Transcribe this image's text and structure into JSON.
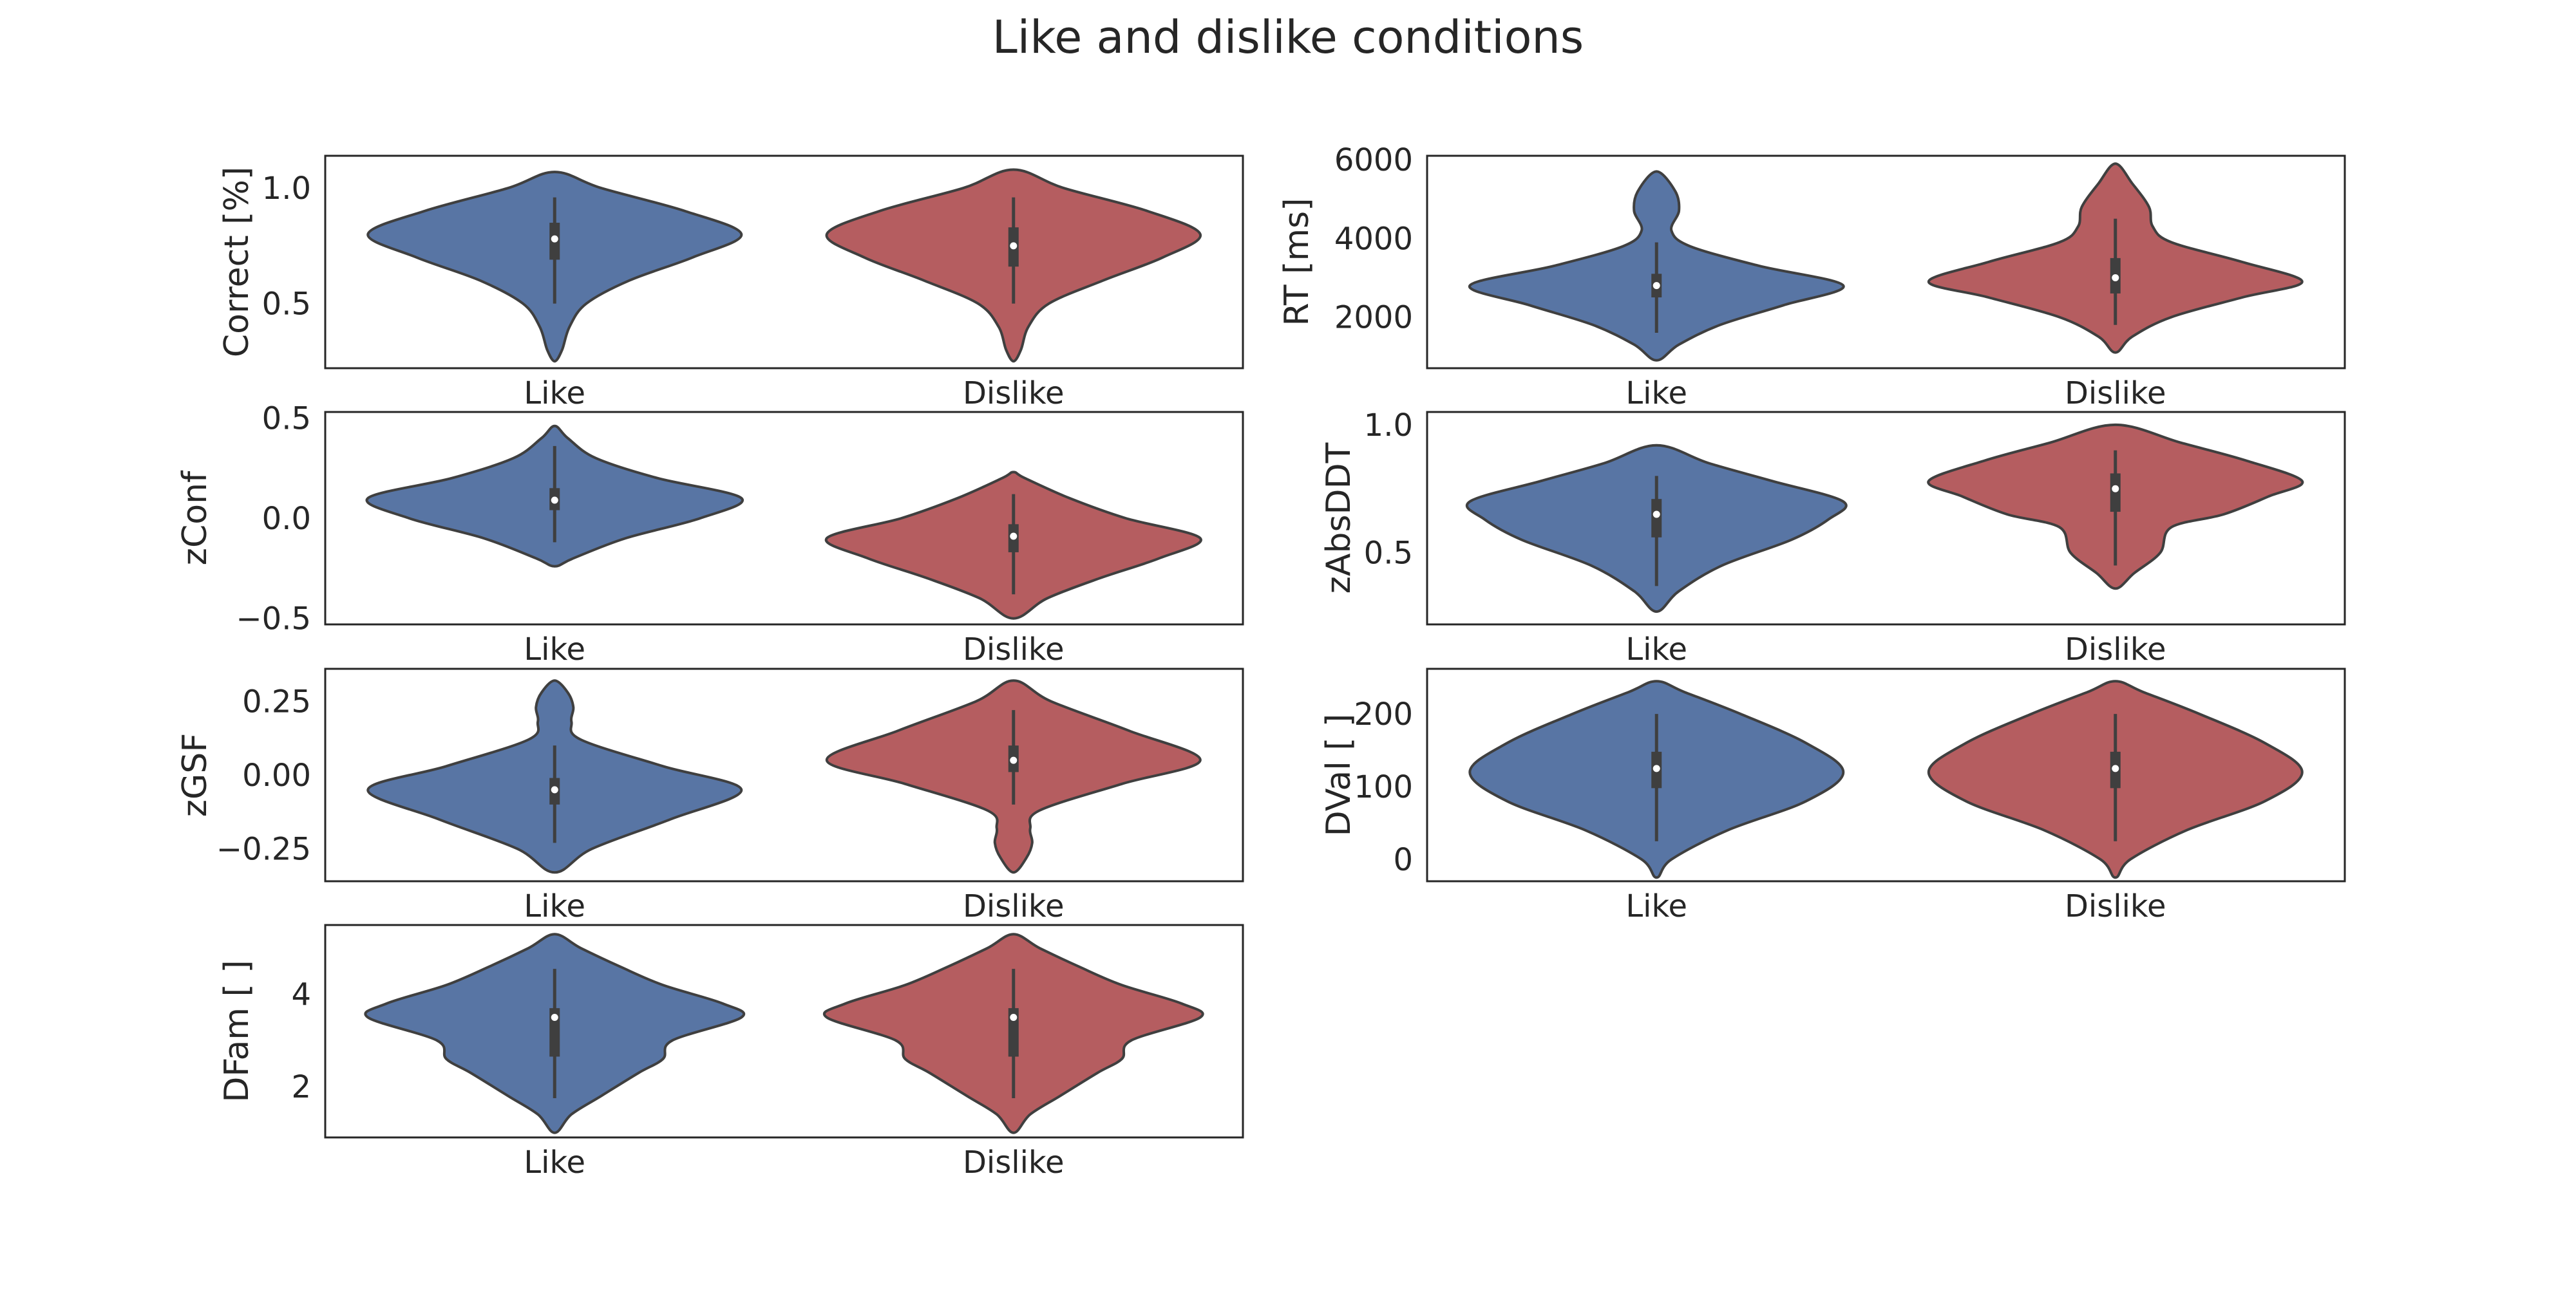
{
  "title": "Like and dislike conditions",
  "colors": {
    "Like": "#5875a4",
    "Dislike": "#b55d60",
    "outline": "#3f3f3f",
    "box": "#3f3f3f",
    "median": "#ffffff"
  },
  "chart_data": [
    {
      "type": "violin",
      "ylabel": "Correct [%]",
      "ylim": [
        0.22,
        1.14
      ],
      "yticks": [
        {
          "v": 0.5,
          "label": "0.5"
        },
        {
          "v": 1.0,
          "label": "1.0"
        }
      ],
      "categories": [
        "Like",
        "Dislike"
      ],
      "series": [
        {
          "category": "Like",
          "min": 0.5,
          "q1": 0.69,
          "median": 0.78,
          "q3": 0.85,
          "max": 0.96,
          "profile": [
            [
              0.25,
              0.0
            ],
            [
              0.3,
              0.04
            ],
            [
              0.4,
              0.08
            ],
            [
              0.5,
              0.17
            ],
            [
              0.6,
              0.4
            ],
            [
              0.7,
              0.74
            ],
            [
              0.8,
              1.0
            ],
            [
              0.9,
              0.7
            ],
            [
              1.0,
              0.25
            ],
            [
              1.07,
              0.0
            ]
          ]
        },
        {
          "category": "Dislike",
          "min": 0.5,
          "q1": 0.66,
          "median": 0.75,
          "q3": 0.83,
          "max": 0.96,
          "profile": [
            [
              0.25,
              0.0
            ],
            [
              0.3,
              0.04
            ],
            [
              0.4,
              0.08
            ],
            [
              0.5,
              0.19
            ],
            [
              0.6,
              0.48
            ],
            [
              0.7,
              0.8
            ],
            [
              0.8,
              1.0
            ],
            [
              0.9,
              0.72
            ],
            [
              1.0,
              0.27
            ],
            [
              1.08,
              0.0
            ]
          ]
        }
      ]
    },
    {
      "type": "violin",
      "ylabel": "RT [ms]",
      "ylim": [
        700,
        6100
      ],
      "yticks": [
        {
          "v": 2000,
          "label": "2000"
        },
        {
          "v": 4000,
          "label": "4000"
        },
        {
          "v": 6000,
          "label": "6000"
        }
      ],
      "categories": [
        "Like",
        "Dislike"
      ],
      "series": [
        {
          "category": "Like",
          "min": 1600,
          "q1": 2500,
          "median": 2800,
          "q3": 3100,
          "max": 3900,
          "profile": [
            [
              900,
              0.0
            ],
            [
              1300,
              0.12
            ],
            [
              1800,
              0.34
            ],
            [
              2300,
              0.68
            ],
            [
              2800,
              1.0
            ],
            [
              3300,
              0.55
            ],
            [
              3800,
              0.18
            ],
            [
              4200,
              0.08
            ],
            [
              4700,
              0.12
            ],
            [
              5200,
              0.1
            ],
            [
              5700,
              0.0
            ]
          ]
        },
        {
          "category": "Dislike",
          "min": 1800,
          "q1": 2600,
          "median": 3000,
          "q3": 3500,
          "max": 4500,
          "profile": [
            [
              1100,
              0.0
            ],
            [
              1500,
              0.09
            ],
            [
              2000,
              0.3
            ],
            [
              2500,
              0.68
            ],
            [
              2900,
              1.0
            ],
            [
              3400,
              0.68
            ],
            [
              3900,
              0.3
            ],
            [
              4300,
              0.2
            ],
            [
              4800,
              0.18
            ],
            [
              5400,
              0.09
            ],
            [
              5900,
              0.0
            ]
          ]
        }
      ]
    },
    {
      "type": "violin",
      "ylabel": "zConf",
      "ylim": [
        -0.53,
        0.53
      ],
      "yticks": [
        {
          "v": -0.5,
          "label": "−0.5"
        },
        {
          "v": 0.0,
          "label": "0.0"
        },
        {
          "v": 0.5,
          "label": "0.5"
        }
      ],
      "categories": [
        "Like",
        "Dislike"
      ],
      "series": [
        {
          "category": "Like",
          "min": -0.12,
          "q1": 0.04,
          "median": 0.09,
          "q3": 0.15,
          "max": 0.36,
          "profile": [
            [
              -0.24,
              0.0
            ],
            [
              -0.2,
              0.1
            ],
            [
              -0.1,
              0.38
            ],
            [
              0.0,
              0.78
            ],
            [
              0.1,
              1.0
            ],
            [
              0.2,
              0.55
            ],
            [
              0.3,
              0.22
            ],
            [
              0.4,
              0.07
            ],
            [
              0.46,
              0.0
            ]
          ]
        },
        {
          "category": "Dislike",
          "min": -0.38,
          "q1": -0.17,
          "median": -0.09,
          "q3": -0.03,
          "max": 0.12,
          "profile": [
            [
              -0.5,
              0.0
            ],
            [
              -0.4,
              0.18
            ],
            [
              -0.3,
              0.46
            ],
            [
              -0.2,
              0.78
            ],
            [
              -0.1,
              1.0
            ],
            [
              0.0,
              0.6
            ],
            [
              0.1,
              0.3
            ],
            [
              0.2,
              0.06
            ],
            [
              0.23,
              0.0
            ]
          ]
        }
      ]
    },
    {
      "type": "violin",
      "ylabel": "zAbsDDT",
      "ylim": [
        0.22,
        1.05
      ],
      "yticks": [
        {
          "v": 0.5,
          "label": "0.5"
        },
        {
          "v": 1.0,
          "label": "1.0"
        }
      ],
      "categories": [
        "Like",
        "Dislike"
      ],
      "series": [
        {
          "category": "Like",
          "min": 0.37,
          "q1": 0.56,
          "median": 0.65,
          "q3": 0.71,
          "max": 0.8,
          "profile": [
            [
              0.27,
              0.0
            ],
            [
              0.35,
              0.12
            ],
            [
              0.45,
              0.35
            ],
            [
              0.55,
              0.72
            ],
            [
              0.63,
              0.92
            ],
            [
              0.7,
              1.0
            ],
            [
              0.78,
              0.62
            ],
            [
              0.85,
              0.28
            ],
            [
              0.92,
              0.0
            ]
          ]
        },
        {
          "category": "Dislike",
          "min": 0.45,
          "q1": 0.66,
          "median": 0.75,
          "q3": 0.81,
          "max": 0.9,
          "profile": [
            [
              0.36,
              0.0
            ],
            [
              0.42,
              0.1
            ],
            [
              0.5,
              0.24
            ],
            [
              0.6,
              0.3
            ],
            [
              0.65,
              0.58
            ],
            [
              0.72,
              0.82
            ],
            [
              0.78,
              1.0
            ],
            [
              0.86,
              0.7
            ],
            [
              0.93,
              0.35
            ],
            [
              1.0,
              0.0
            ]
          ]
        }
      ]
    },
    {
      "type": "violin",
      "ylabel": "zGSF",
      "ylim": [
        -0.36,
        0.36
      ],
      "yticks": [
        {
          "v": -0.25,
          "label": "−0.25"
        },
        {
          "v": 0.0,
          "label": "0.00"
        },
        {
          "v": 0.25,
          "label": "0.25"
        }
      ],
      "categories": [
        "Like",
        "Dislike"
      ],
      "series": [
        {
          "category": "Like",
          "min": -0.23,
          "q1": -0.1,
          "median": -0.05,
          "q3": -0.01,
          "max": 0.1,
          "profile": [
            [
              -0.33,
              0.0
            ],
            [
              -0.25,
              0.2
            ],
            [
              -0.15,
              0.62
            ],
            [
              -0.05,
              1.0
            ],
            [
              0.03,
              0.58
            ],
            [
              0.12,
              0.14
            ],
            [
              0.18,
              0.09
            ],
            [
              0.23,
              0.1
            ],
            [
              0.28,
              0.07
            ],
            [
              0.32,
              0.0
            ]
          ]
        },
        {
          "category": "Dislike",
          "min": -0.1,
          "q1": 0.01,
          "median": 0.05,
          "q3": 0.1,
          "max": 0.22,
          "profile": [
            [
              -0.33,
              0.0
            ],
            [
              -0.28,
              0.07
            ],
            [
              -0.23,
              0.1
            ],
            [
              -0.18,
              0.09
            ],
            [
              -0.12,
              0.14
            ],
            [
              -0.03,
              0.58
            ],
            [
              0.05,
              1.0
            ],
            [
              0.15,
              0.62
            ],
            [
              0.25,
              0.2
            ],
            [
              0.32,
              0.0
            ]
          ]
        }
      ]
    },
    {
      "type": "violin",
      "ylabel": "DVal [ ]",
      "ylim": [
        -30,
        262
      ],
      "yticks": [
        {
          "v": 0,
          "label": "0"
        },
        {
          "v": 100,
          "label": "100"
        },
        {
          "v": 200,
          "label": "200"
        }
      ],
      "categories": [
        "Like",
        "Dislike"
      ],
      "series": [
        {
          "category": "Like",
          "min": 25,
          "q1": 98,
          "median": 125,
          "q3": 148,
          "max": 200,
          "profile": [
            [
              -25,
              0.0
            ],
            [
              0,
              0.08
            ],
            [
              40,
              0.38
            ],
            [
              80,
              0.8
            ],
            [
              120,
              1.0
            ],
            [
              160,
              0.8
            ],
            [
              200,
              0.45
            ],
            [
              230,
              0.15
            ],
            [
              245,
              0.0
            ]
          ]
        },
        {
          "category": "Dislike",
          "min": 25,
          "q1": 98,
          "median": 125,
          "q3": 148,
          "max": 200,
          "profile": [
            [
              -25,
              0.0
            ],
            [
              0,
              0.08
            ],
            [
              40,
              0.38
            ],
            [
              80,
              0.8
            ],
            [
              120,
              1.0
            ],
            [
              160,
              0.8
            ],
            [
              200,
              0.45
            ],
            [
              230,
              0.15
            ],
            [
              245,
              0.0
            ]
          ]
        }
      ]
    },
    {
      "type": "violin",
      "ylabel": "DFam [ ]",
      "ylim": [
        0.9,
        5.5
      ],
      "yticks": [
        {
          "v": 2,
          "label": "2"
        },
        {
          "v": 4,
          "label": "4"
        }
      ],
      "categories": [
        "Like",
        "Dislike"
      ],
      "series": [
        {
          "category": "Like",
          "min": 1.75,
          "q1": 2.65,
          "median": 3.5,
          "q3": 3.7,
          "max": 4.55,
          "profile": [
            [
              1.0,
              0.0
            ],
            [
              1.4,
              0.09
            ],
            [
              1.8,
              0.25
            ],
            [
              2.3,
              0.45
            ],
            [
              2.6,
              0.58
            ],
            [
              3.0,
              0.63
            ],
            [
              3.5,
              1.0
            ],
            [
              3.8,
              0.9
            ],
            [
              4.2,
              0.58
            ],
            [
              4.6,
              0.35
            ],
            [
              5.0,
              0.14
            ],
            [
              5.3,
              0.0
            ]
          ]
        },
        {
          "category": "Dislike",
          "min": 1.75,
          "q1": 2.65,
          "median": 3.5,
          "q3": 3.7,
          "max": 4.55,
          "profile": [
            [
              1.0,
              0.0
            ],
            [
              1.4,
              0.09
            ],
            [
              1.8,
              0.25
            ],
            [
              2.3,
              0.45
            ],
            [
              2.6,
              0.58
            ],
            [
              3.0,
              0.63
            ],
            [
              3.5,
              1.0
            ],
            [
              3.8,
              0.9
            ],
            [
              4.2,
              0.58
            ],
            [
              4.6,
              0.35
            ],
            [
              5.0,
              0.14
            ],
            [
              5.3,
              0.0
            ]
          ]
        }
      ]
    }
  ]
}
